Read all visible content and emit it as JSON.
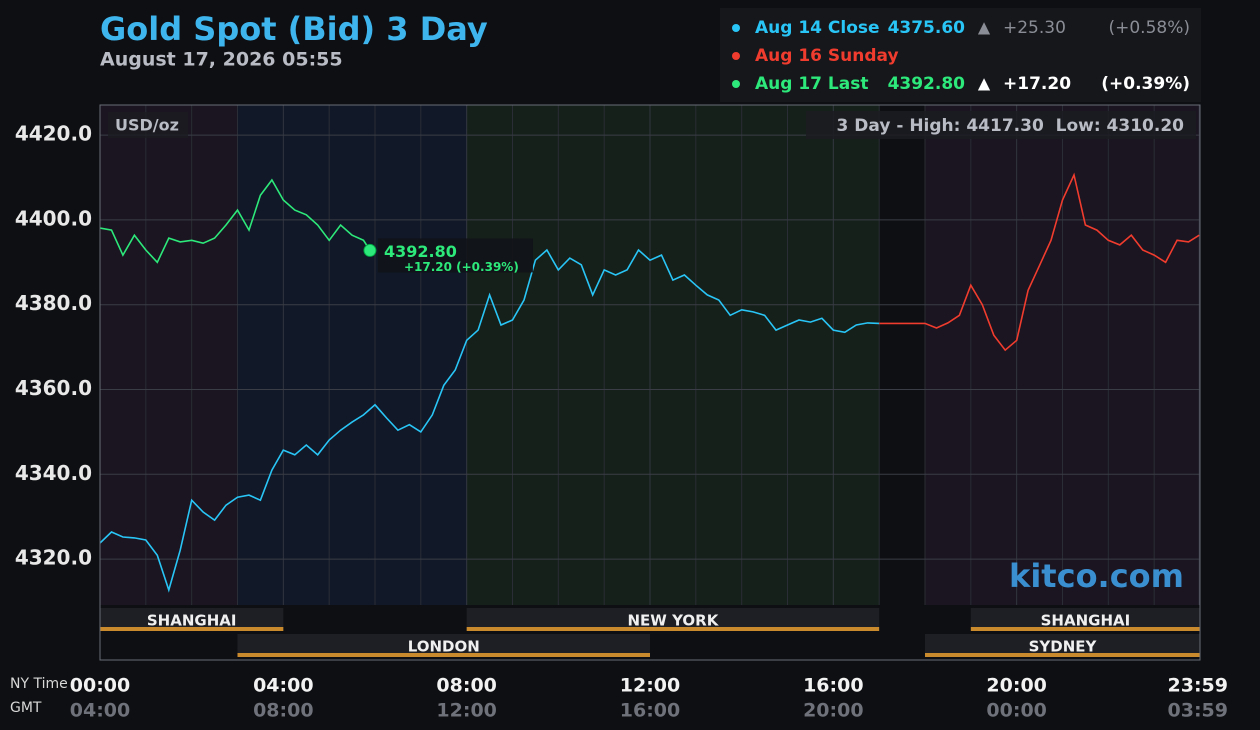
{
  "chart_data": {
    "type": "line",
    "title": "Gold Spot (Bid) 3 Day",
    "subtitle": "August 17, 2026 05:55",
    "unit_label": "USD/oz",
    "range_label": "3 Day - High: 4417.30  Low: 4310.20",
    "watermark": "kitco.com",
    "x_axis_labels": [
      "NY Time",
      "GMT"
    ],
    "xlim": [
      0,
      24
    ],
    "xticks": [
      {
        "value": 0,
        "label": "00:00"
      },
      {
        "value": 4,
        "label": "04:00"
      },
      {
        "value": 8,
        "label": "08:00"
      },
      {
        "value": 12,
        "label": "12:00"
      },
      {
        "value": 16,
        "label": "16:00"
      },
      {
        "value": 20,
        "label": "20:00"
      },
      {
        "value": 23.983,
        "label": "23:59"
      }
    ],
    "gmt_labels": [
      "04:00",
      "08:00",
      "12:00",
      "16:00",
      "20:00",
      "00:00",
      "03:59"
    ],
    "x_minor_ticks": [
      1,
      2,
      3,
      5,
      6,
      7,
      9,
      10,
      11,
      13,
      14,
      15,
      17,
      18,
      19,
      21,
      22,
      23
    ],
    "ylim": [
      4296.2,
      4427.1
    ],
    "yticks": [
      {
        "value": 4320,
        "label": "4320.0"
      },
      {
        "value": 4340,
        "label": "4340.0"
      },
      {
        "value": 4360,
        "label": "4360.0"
      },
      {
        "value": 4380,
        "label": "4380.0"
      },
      {
        "value": 4400,
        "label": "4400.0"
      },
      {
        "value": 4420,
        "label": "4420.0"
      }
    ],
    "grid": true,
    "backgrounds": [
      {
        "start": 0,
        "end": 3,
        "color": "#1a1520"
      },
      {
        "start": 3,
        "end": 8,
        "color": "#111827"
      },
      {
        "start": 8,
        "end": 17,
        "color": "#16201a"
      },
      {
        "start": 17,
        "end": 18,
        "color": "#0e0f12"
      },
      {
        "start": 18,
        "end": 24,
        "color": "#1a1520"
      }
    ],
    "sessions": [
      [
        {
          "name": "SHANGHAI",
          "start": 0,
          "end": 4
        },
        {
          "name": "NEW YORK",
          "start": 8,
          "end": 17
        },
        {
          "name": "SHANGHAI",
          "start": 19,
          "end": 24
        }
      ],
      [
        {
          "name": "LONDON",
          "start": 3,
          "end": 12
        },
        {
          "name": "SYDNEY",
          "start": 18,
          "end": 24
        }
      ]
    ],
    "series": [
      {
        "name": "Aug 14 Close",
        "color": "#29c5f6",
        "price": "4375.60",
        "arrow": "▲",
        "change": "+25.30",
        "change_pct": "(+0.58%)",
        "x": [
          0,
          0.25,
          0.5,
          0.75,
          1,
          1.25,
          1.5,
          1.75,
          2,
          2.25,
          2.5,
          2.75,
          3,
          3.25,
          3.5,
          3.75,
          4,
          4.25,
          4.5,
          4.75,
          5,
          5.25,
          5.5,
          5.75,
          6,
          6.25,
          6.5,
          6.75,
          7,
          7.25,
          7.5,
          7.75,
          8,
          8.25,
          8.5,
          8.75,
          9,
          9.25,
          9.5,
          9.75,
          10,
          10.25,
          10.5,
          10.75,
          11,
          11.25,
          11.5,
          11.75,
          12,
          12.25,
          12.5,
          12.75,
          13,
          13.25,
          13.5,
          13.75,
          14,
          14.25,
          14.5,
          14.75,
          15,
          15.25,
          15.5,
          15.75,
          16,
          16.25,
          16.5,
          16.75,
          17
        ],
        "values": [
          4323.8,
          4326.4,
          4325.2,
          4325.0,
          4324.5,
          4320.9,
          4312.7,
          4322.1,
          4333.9,
          4331.1,
          4329.2,
          4332.7,
          4334.6,
          4335.1,
          4333.9,
          4341.0,
          4345.7,
          4344.6,
          4346.9,
          4344.6,
          4348.1,
          4350.4,
          4352.3,
          4354.0,
          4356.4,
          4353.3,
          4350.4,
          4351.7,
          4350.0,
          4354.0,
          4361.0,
          4364.6,
          4371.6,
          4374.0,
          4382.3,
          4375.2,
          4376.4,
          4381.1,
          4390.5,
          4392.9,
          4388.2,
          4391.0,
          4389.4,
          4382.3,
          4388.2,
          4387.0,
          4388.2,
          4392.9,
          4390.5,
          4391.7,
          4385.8,
          4387.0,
          4384.6,
          4382.3,
          4381.1,
          4377.5,
          4378.8,
          4378.3,
          4377.5,
          4374.0,
          4375.2,
          4376.4,
          4375.9,
          4376.8,
          4374.0,
          4373.5,
          4375.2,
          4375.7,
          4375.6
        ]
      },
      {
        "name": "Aug 16 Sunday",
        "color": "#f03c2e",
        "x": [
          17,
          18,
          18.25,
          18.5,
          18.75,
          19,
          19.25,
          19.5,
          19.75,
          20,
          20.25,
          20.5,
          20.75,
          21,
          21.25,
          21.5,
          21.75,
          22,
          22.25,
          22.5,
          22.75,
          23,
          23.25,
          23.5,
          23.75,
          23.983
        ],
        "values": [
          4375.6,
          4375.6,
          4374.5,
          4375.7,
          4377.5,
          4384.6,
          4380.0,
          4372.8,
          4369.3,
          4371.6,
          4383.4,
          4389.3,
          4395.2,
          4404.7,
          4410.6,
          4398.8,
          4397.6,
          4395.2,
          4394.1,
          4396.4,
          4392.9,
          4391.7,
          4390.0,
          4395.2,
          4394.8,
          4396.4
        ]
      },
      {
        "name": "Aug 17 Last",
        "color": "#2de87a",
        "price": "4392.80",
        "arrow": "▲",
        "change": "+17.20",
        "change_pct": "(+0.39%)",
        "x": [
          0,
          0.25,
          0.5,
          0.75,
          1,
          1.25,
          1.5,
          1.75,
          2,
          2.25,
          2.5,
          2.75,
          3,
          3.25,
          3.5,
          3.75,
          4,
          4.25,
          4.5,
          4.75,
          5,
          5.25,
          5.5,
          5.75,
          5.89
        ],
        "values": [
          4398.1,
          4397.6,
          4391.7,
          4396.4,
          4392.9,
          4390.0,
          4395.7,
          4394.8,
          4395.2,
          4394.5,
          4395.7,
          4398.8,
          4402.3,
          4397.6,
          4405.8,
          4409.4,
          4404.7,
          4402.3,
          4401.2,
          4398.8,
          4395.2,
          4398.8,
          4396.4,
          4395.2,
          4392.8
        ],
        "last_label": "4392.80",
        "last_change": "+17.20 (+0.39%)"
      }
    ]
  }
}
